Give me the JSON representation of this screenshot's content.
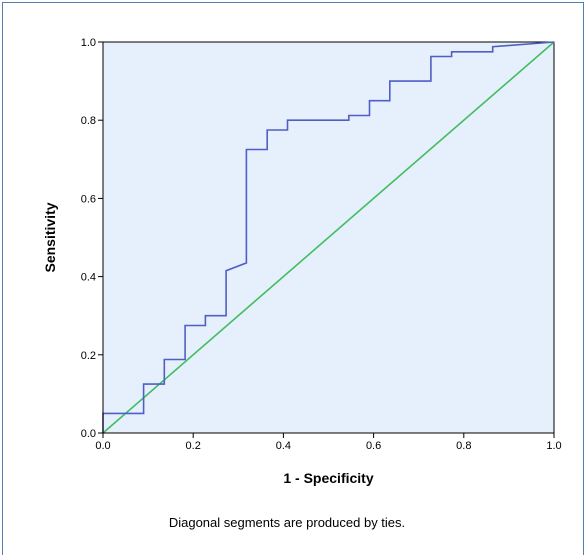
{
  "chart_data": {
    "type": "line",
    "title": "",
    "xlabel": "1 - Specificity",
    "ylabel": "Sensitivity",
    "xlim": [
      0.0,
      1.0
    ],
    "ylim": [
      0.0,
      1.0
    ],
    "x_ticks": [
      "0.0",
      "0.2",
      "0.4",
      "0.6",
      "0.8",
      "1.0"
    ],
    "y_ticks": [
      "0.0",
      "0.2",
      "0.4",
      "0.6",
      "0.8",
      "1.0"
    ],
    "grid": false,
    "background_color": "#e6effc",
    "footnote": "Diagonal segments are produced by ties.",
    "series": [
      {
        "color": "#4f5fc6",
        "style": "step",
        "x": [
          0.0,
          0.0,
          0.09,
          0.09,
          0.136,
          0.136,
          0.182,
          0.182,
          0.227,
          0.227,
          0.273,
          0.273,
          0.318,
          0.318,
          0.364,
          0.364,
          0.409,
          0.409,
          0.545,
          0.545,
          0.591,
          0.591,
          0.636,
          0.636,
          0.727,
          0.727,
          0.773,
          0.773,
          0.864,
          0.864,
          1.0
        ],
        "y": [
          0.0,
          0.05,
          0.05,
          0.125,
          0.125,
          0.188,
          0.188,
          0.275,
          0.275,
          0.3,
          0.3,
          0.415,
          0.435,
          0.725,
          0.725,
          0.775,
          0.775,
          0.8,
          0.8,
          0.812,
          0.812,
          0.85,
          0.85,
          0.9,
          0.9,
          0.963,
          0.963,
          0.975,
          0.975,
          0.988,
          1.0
        ]
      },
      {
        "color": "#3fbf5f",
        "style": "reference",
        "x": [
          0.0,
          1.0
        ],
        "y": [
          0.0,
          1.0
        ]
      }
    ]
  }
}
